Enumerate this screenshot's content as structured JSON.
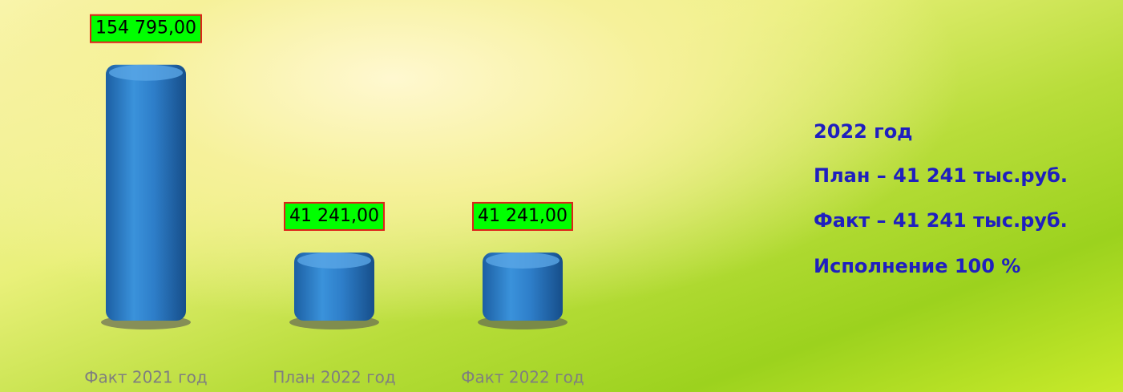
{
  "chart_data": {
    "type": "bar",
    "categories": [
      "Факт 2021 год",
      "План 2022 год",
      "Факт 2022 год"
    ],
    "values": [
      154795,
      41241,
      41241
    ],
    "value_labels": [
      "154 795,00",
      "41 241,00",
      "41 241,00"
    ],
    "color": "#2e7ec9",
    "ylim": [
      0,
      160000
    ],
    "annotations": [
      "2022 год",
      "План – 41 241 тыс.руб.",
      "Факт – 41 241 тыс.руб.",
      "Исполнение 100 %"
    ]
  }
}
